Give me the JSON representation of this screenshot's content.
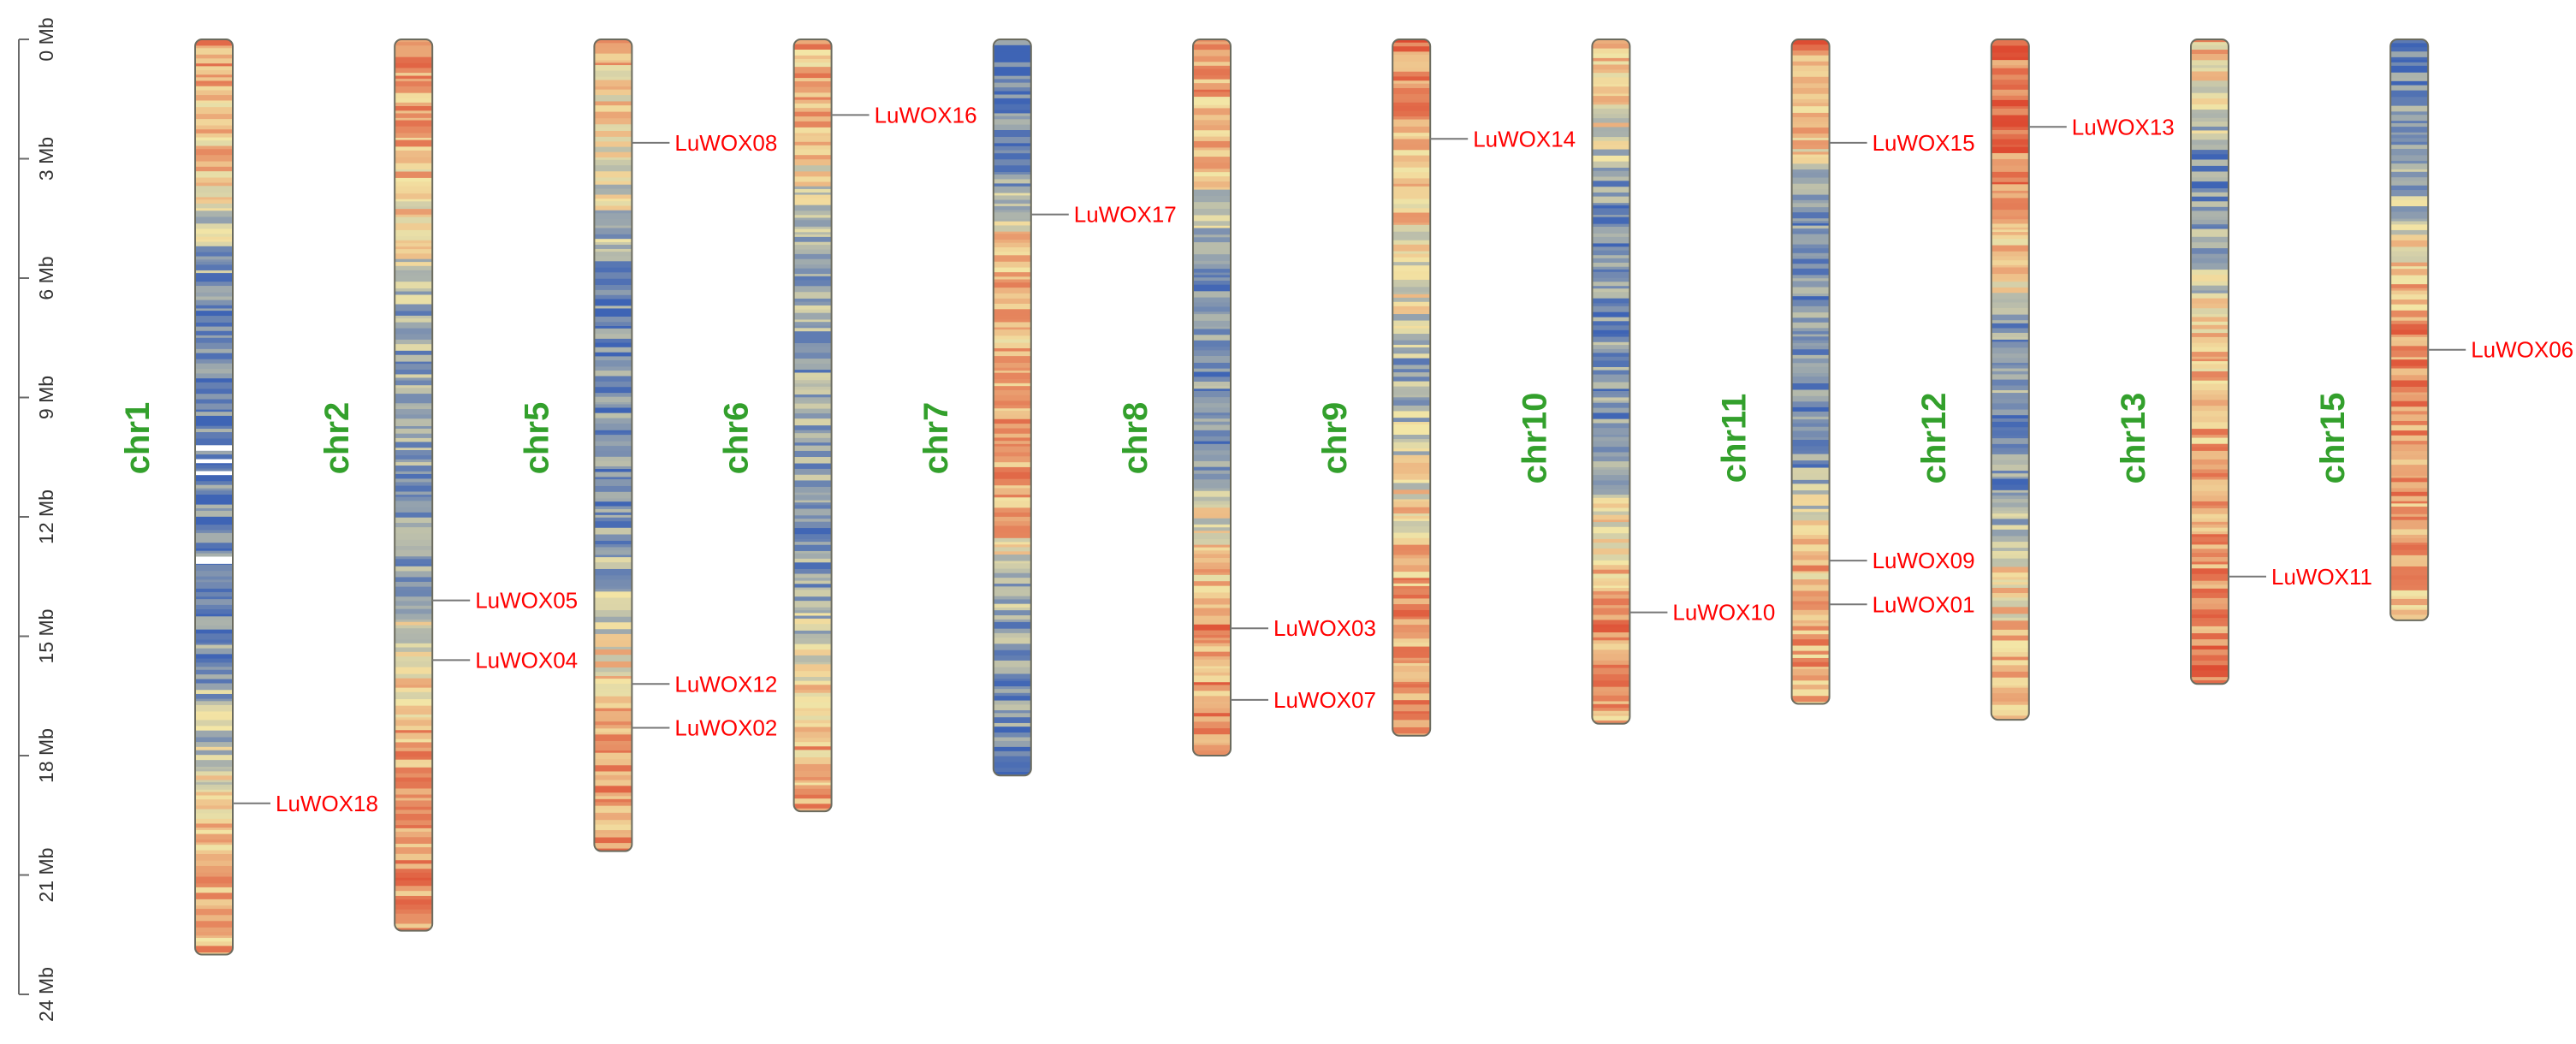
{
  "chart_data": {
    "type": "chromosome_map",
    "title": "",
    "axis": {
      "unit": "Mb",
      "range": [
        0,
        24
      ],
      "ticks": [
        {
          "value": 0,
          "label": "0 Mb"
        },
        {
          "value": 3,
          "label": "3 Mb"
        },
        {
          "value": 6,
          "label": "6 Mb"
        },
        {
          "value": 9,
          "label": "9 Mb"
        },
        {
          "value": 12,
          "label": "12 Mb"
        },
        {
          "value": 15,
          "label": "15 Mb"
        },
        {
          "value": 18,
          "label": "18 Mb"
        },
        {
          "value": 21,
          "label": "21 Mb"
        },
        {
          "value": 24,
          "label": "24 Mb"
        }
      ]
    },
    "density_colors": {
      "low": "#3e64b5",
      "mid": "#f3e6a6",
      "high": "#dd4a31"
    },
    "label_colors": {
      "chromosome": "#33a02c",
      "gene": "#ff0000",
      "axis": "#333333"
    },
    "chromosomes": [
      {
        "name": "chr1",
        "length": 23.0,
        "genes": [
          {
            "name": "LuWOX18",
            "position": 19.2
          }
        ]
      },
      {
        "name": "chr2",
        "length": 22.4,
        "genes": [
          {
            "name": "LuWOX05",
            "position": 14.1
          },
          {
            "name": "LuWOX04",
            "position": 15.6
          }
        ]
      },
      {
        "name": "chr5",
        "length": 20.4,
        "genes": [
          {
            "name": "LuWOX08",
            "position": 2.6
          },
          {
            "name": "LuWOX12",
            "position": 16.2
          },
          {
            "name": "LuWOX02",
            "position": 17.3
          }
        ]
      },
      {
        "name": "chr6",
        "length": 19.4,
        "genes": [
          {
            "name": "LuWOX16",
            "position": 1.9
          }
        ]
      },
      {
        "name": "chr7",
        "length": 18.5,
        "genes": [
          {
            "name": "LuWOX17",
            "position": 4.4
          }
        ]
      },
      {
        "name": "chr8",
        "length": 18.0,
        "genes": [
          {
            "name": "LuWOX03",
            "position": 14.8
          },
          {
            "name": "LuWOX07",
            "position": 16.6
          }
        ]
      },
      {
        "name": "chr9",
        "length": 17.5,
        "genes": [
          {
            "name": "LuWOX14",
            "position": 2.5
          }
        ]
      },
      {
        "name": "chr10",
        "length": 17.2,
        "genes": [
          {
            "name": "LuWOX10",
            "position": 14.4
          }
        ]
      },
      {
        "name": "chr11",
        "length": 16.7,
        "genes": [
          {
            "name": "LuWOX15",
            "position": 2.6
          },
          {
            "name": "LuWOX09",
            "position": 13.1
          },
          {
            "name": "LuWOX01",
            "position": 14.2
          }
        ]
      },
      {
        "name": "chr12",
        "length": 17.1,
        "genes": [
          {
            "name": "LuWOX13",
            "position": 2.2
          }
        ]
      },
      {
        "name": "chr13",
        "length": 16.2,
        "genes": [
          {
            "name": "LuWOX11",
            "position": 13.5
          }
        ]
      },
      {
        "name": "chr15",
        "length": 14.6,
        "genes": [
          {
            "name": "LuWOX06",
            "position": 7.8
          }
        ]
      }
    ]
  }
}
